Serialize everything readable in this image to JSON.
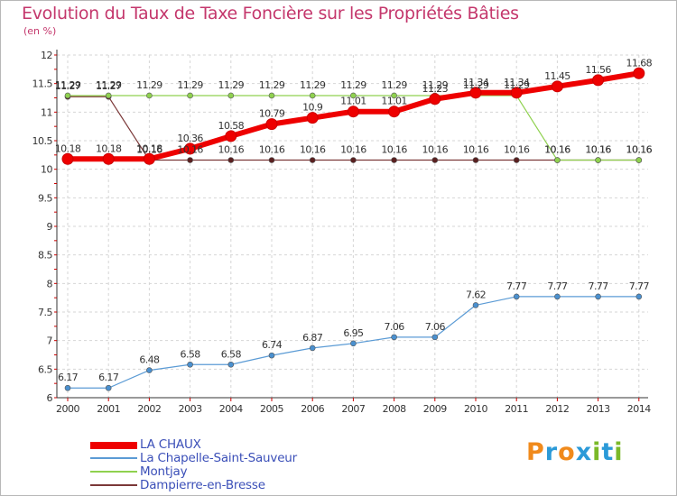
{
  "title": "Evolution du Taux de Taxe Foncière sur les Propriétés Bâties",
  "unit": "(en %)",
  "logo": {
    "letters": [
      "P",
      "r",
      "o",
      "x",
      "i",
      "t",
      "i"
    ],
    "colors": [
      "#f08a1c",
      "#2b9ad8",
      "#f08a1c",
      "#2b9ad8",
      "#7ab929",
      "#2b9ad8",
      "#7ab929"
    ]
  },
  "chart_data": {
    "type": "line",
    "x": [
      2000,
      2001,
      2002,
      2003,
      2004,
      2005,
      2006,
      2007,
      2008,
      2009,
      2010,
      2011,
      2012,
      2013,
      2014
    ],
    "ylim": [
      6,
      12
    ],
    "yticks": [
      "6",
      "6.5",
      "7",
      "7.5",
      "8",
      "8.5",
      "9",
      "9.5",
      "10",
      "10.5",
      "11",
      "11.5",
      "12"
    ],
    "series": [
      {
        "name": "LA CHAUX",
        "color": "#ee0000",
        "values": [
          10.18,
          10.18,
          10.18,
          10.36,
          10.58,
          10.79,
          10.9,
          11.01,
          11.01,
          11.23,
          11.34,
          11.34,
          11.45,
          11.56,
          11.68
        ],
        "labels": [
          "10.18",
          "10.18",
          "10.18",
          "10.36",
          "10.58",
          "10.79",
          "10.9",
          "11.01",
          "11.01",
          "11.23",
          "11.34",
          "11.34",
          "11.45",
          "11.56",
          "11.68"
        ]
      },
      {
        "name": "La Chapelle-Saint-Sauveur",
        "color": "#5b9bd5",
        "values": [
          6.17,
          6.17,
          6.48,
          6.58,
          6.58,
          6.74,
          6.87,
          6.95,
          7.06,
          7.06,
          7.62,
          7.77,
          7.77,
          7.77,
          7.77
        ],
        "labels": [
          "6.17",
          "6.17",
          "6.48",
          "6.58",
          "6.58",
          "6.74",
          "6.87",
          "6.95",
          "7.06",
          "7.06",
          "7.62",
          "7.77",
          "7.77",
          "7.77",
          "7.77"
        ]
      },
      {
        "name": "Montjay",
        "color": "#8fd14f",
        "values": [
          11.29,
          11.29,
          11.29,
          11.29,
          11.29,
          11.29,
          11.29,
          11.29,
          11.29,
          11.29,
          11.29,
          11.29,
          10.16,
          10.16,
          10.16
        ],
        "labels": [
          "11.29",
          "11.29",
          "11.29",
          "11.29",
          "11.29",
          "11.29",
          "11.29",
          "11.29",
          "11.29",
          "11.29",
          "11.29",
          "11.29",
          "10.16",
          "10.16",
          "10.16"
        ]
      },
      {
        "name": "Dampierre-en-Bresse",
        "color": "#7b3838",
        "values": [
          11.27,
          11.27,
          10.16,
          10.16,
          10.16,
          10.16,
          10.16,
          10.16,
          10.16,
          10.16,
          10.16,
          10.16,
          10.16,
          10.16,
          10.16
        ],
        "labels": [
          "11.27",
          "11.27",
          "10.16",
          "10.16",
          "10.16",
          "10.16",
          "10.16",
          "10.16",
          "10.16",
          "10.16",
          "10.16",
          "10.16",
          "10.16",
          "10.16",
          "10.16"
        ]
      }
    ],
    "legend": [
      "LA CHAUX",
      "La Chapelle-Saint-Sauveur",
      "Montjay",
      "Dampierre-en-Bresse"
    ]
  }
}
